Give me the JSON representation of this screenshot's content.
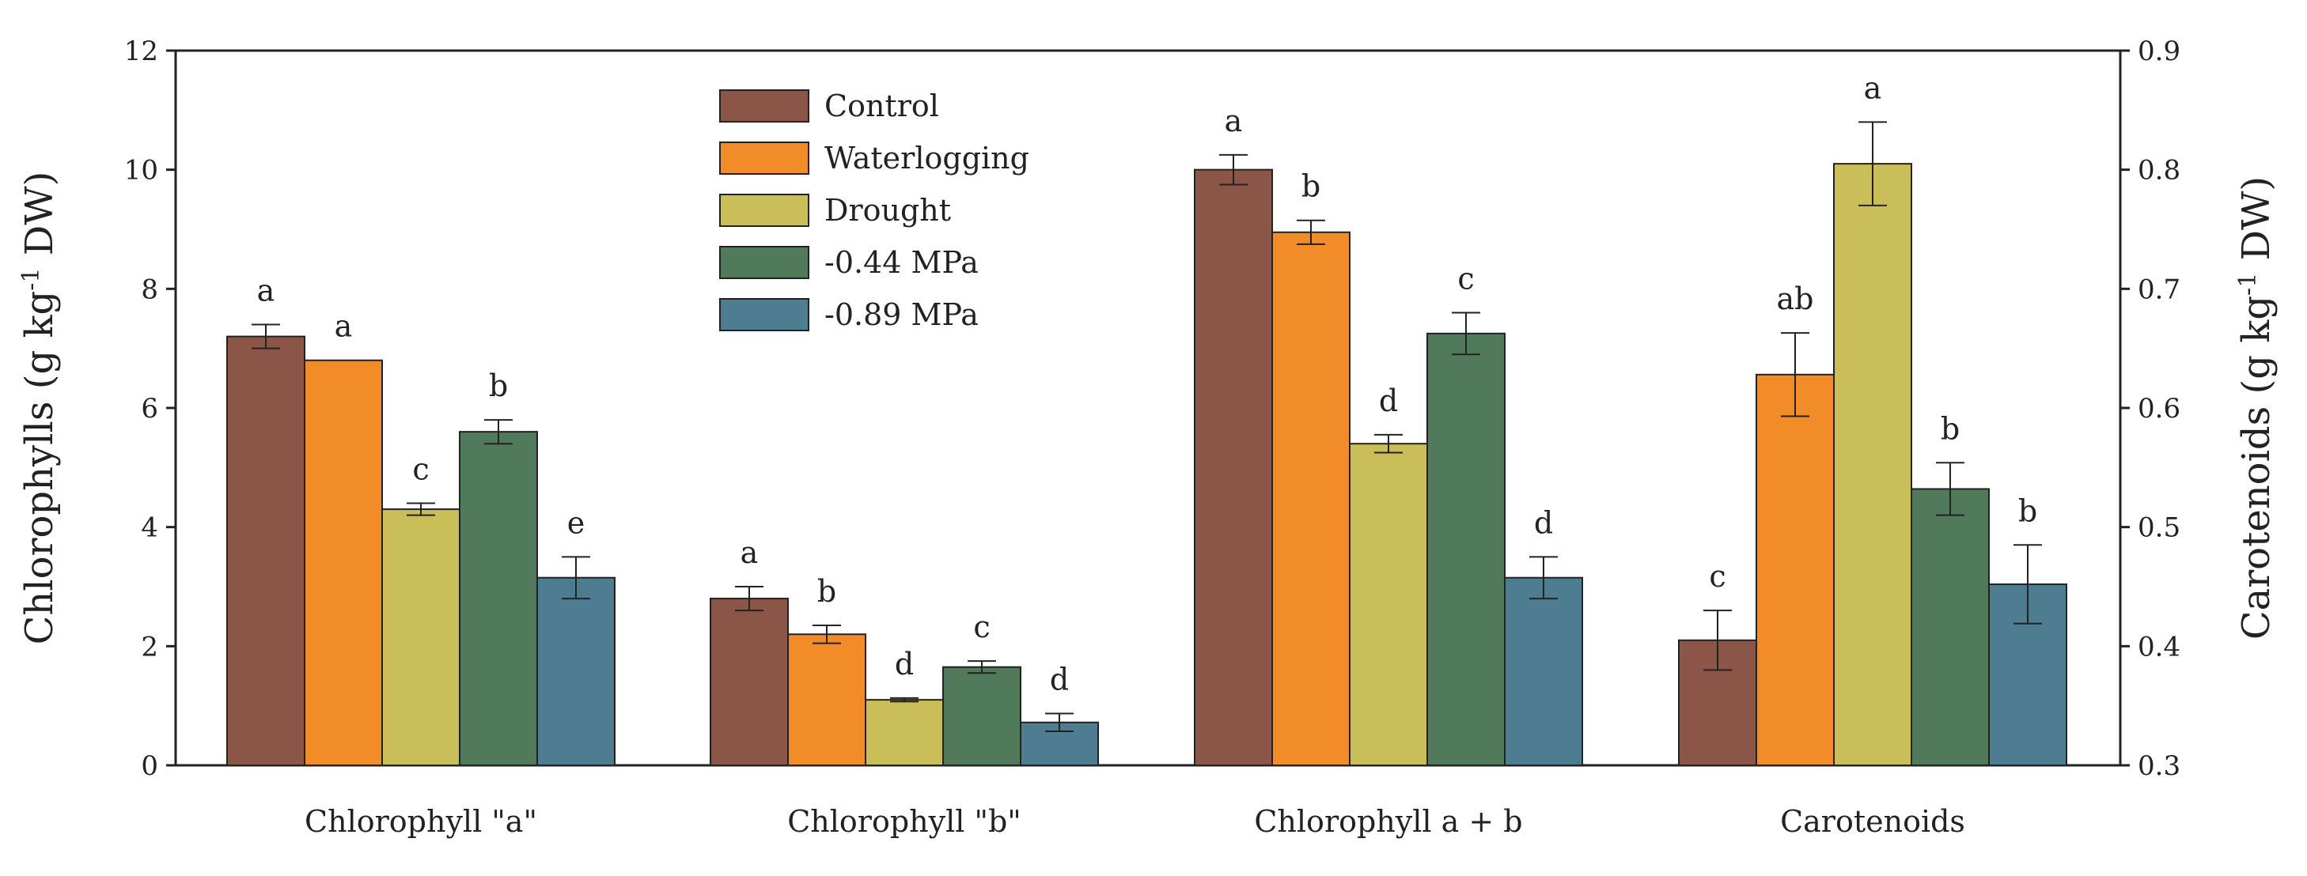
{
  "chart_data": {
    "type": "bar",
    "categories": [
      "Chlorophyll \"a\"",
      "Chlorophyll \"b\"",
      "Chlorophyll a + b",
      "Carotenoids"
    ],
    "series": [
      {
        "name": "Control",
        "color": "#8B5647",
        "values": [
          7.2,
          2.8,
          10.0,
          0.405
        ],
        "errors": [
          0.2,
          0.2,
          0.25,
          0.025
        ],
        "letters": [
          "a",
          "a",
          "a",
          "c"
        ]
      },
      {
        "name": "Waterlogging",
        "color": "#F28C28",
        "values": [
          6.8,
          2.2,
          8.95,
          0.628
        ],
        "errors": [
          0.0,
          0.15,
          0.2,
          0.035
        ],
        "letters": [
          "a",
          "b",
          "b",
          "ab"
        ]
      },
      {
        "name": "Drought",
        "color": "#C9BE57",
        "values": [
          4.3,
          1.1,
          5.4,
          0.805
        ],
        "errors": [
          0.1,
          0.03,
          0.15,
          0.035
        ],
        "letters": [
          "c",
          "d",
          "d",
          "a"
        ]
      },
      {
        "name": "-0.44 MPa",
        "color": "#517A5B",
        "values": [
          5.6,
          1.65,
          7.25,
          0.532
        ],
        "errors": [
          0.2,
          0.1,
          0.35,
          0.022
        ],
        "letters": [
          "b",
          "c",
          "c",
          "b"
        ]
      },
      {
        "name": "-0.89 MPa",
        "color": "#4E7D91",
        "values": [
          3.15,
          0.72,
          3.15,
          0.452
        ],
        "errors": [
          0.35,
          0.15,
          0.35,
          0.033
        ],
        "letters": [
          "e",
          "d",
          "d",
          "b"
        ]
      }
    ],
    "secondary_axis_category": "Carotenoids",
    "ylabel": "Chlorophylls (g kg-1 DW)",
    "ylabel_parts": {
      "pre": "Chlorophylls (g kg",
      "sup": "-1",
      "post": " DW)"
    },
    "ylim": [
      0,
      12
    ],
    "yticks": [
      "0",
      "2",
      "4",
      "6",
      "8",
      "10",
      "12"
    ],
    "y2label": "Carotenoids (g kg-1 DW)",
    "y2label_parts": {
      "pre": "Carotenoids (g kg",
      "sup": "-1",
      "post": " DW)"
    },
    "y2lim": [
      0.3,
      0.9
    ],
    "y2ticks": [
      "0.3",
      "0.4",
      "0.5",
      "0.6",
      "0.7",
      "0.8",
      "0.9"
    ],
    "legend_position": "top-center",
    "grid": false
  }
}
